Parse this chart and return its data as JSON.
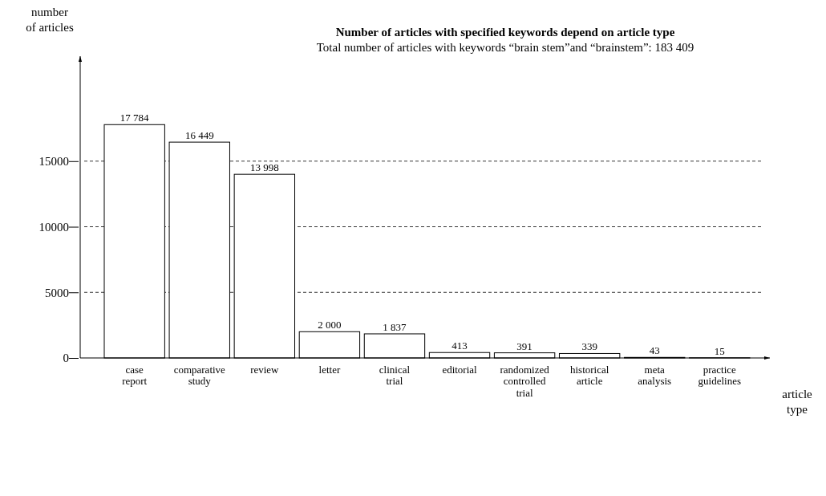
{
  "chart_data": {
    "type": "bar",
    "title": "Number of articles with specified keywords depend on article type",
    "subtitle": "Total number of articles with keywords “brain stem”and “brainstem”: 183 409",
    "xlabel": "article type",
    "ylabel": "number of articles",
    "categories": [
      "case report",
      "comparative study",
      "review",
      "letter",
      "clinical trial",
      "editorial",
      "randomized controlled trial",
      "historical article",
      "meta analysis",
      "practice guidelines"
    ],
    "values": [
      17784,
      16449,
      13998,
      2000,
      1837,
      413,
      391,
      339,
      43,
      15
    ],
    "value_labels": [
      "17 784",
      "16 449",
      "13 998",
      "2 000",
      "1 837",
      "413",
      "391",
      "339",
      "43",
      "15"
    ],
    "color": "#ffffff",
    "ylim": [
      0,
      23000
    ],
    "yticks": [
      0,
      5000,
      10000,
      15000
    ],
    "grid": "y"
  }
}
